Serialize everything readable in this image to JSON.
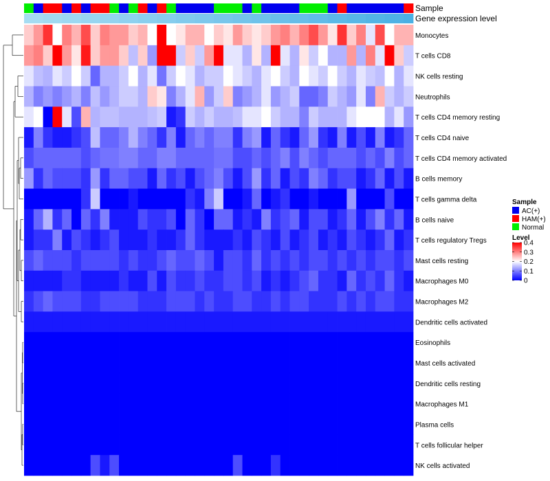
{
  "chart_data": {
    "type": "heatmap",
    "annotations": {
      "sample_title": "Sample",
      "expression_title": "Gene expression level"
    },
    "rows": [
      "Monocytes",
      "T cells CD8",
      "NK cells resting",
      "Neutrophils",
      "T cells CD4 memory resting",
      "T cells CD4 naive",
      "T cells CD4 memory activated",
      "B cells memory",
      "T cells gamma delta",
      "B cells naive",
      "T cells regulatory  Tregs",
      "Mast cells resting",
      "Macrophages M0",
      "Macrophages M2",
      "Dendritic cells activated",
      "Eosinophils",
      "Mast cells activated",
      "Dendritic cells resting",
      "Macrophages M1",
      "Plasma cells",
      "T cells follicular helper",
      "NK cells activated"
    ],
    "sample_groups": [
      "N",
      "A",
      "H",
      "H",
      "A",
      "H",
      "A",
      "H",
      "H",
      "N",
      "A",
      "N",
      "H",
      "A",
      "H",
      "N",
      "A",
      "A",
      "A",
      "A",
      "N",
      "N",
      "N",
      "A",
      "N",
      "A",
      "A",
      "A",
      "A",
      "N",
      "N",
      "N",
      "A",
      "H",
      "A",
      "A",
      "A",
      "A",
      "A",
      "A",
      "H"
    ],
    "expression_levels": [
      0.16,
      0.16,
      0.17,
      0.17,
      0.18,
      0.18,
      0.19,
      0.19,
      0.2,
      0.2,
      0.21,
      0.21,
      0.22,
      0.22,
      0.23,
      0.23,
      0.24,
      0.24,
      0.25,
      0.25,
      0.26,
      0.26,
      0.27,
      0.27,
      0.28,
      0.28,
      0.29,
      0.29,
      0.3,
      0.3,
      0.31,
      0.31,
      0.32,
      0.32,
      0.33,
      0.33,
      0.34,
      0.34,
      0.35,
      0.35,
      0.36
    ],
    "values": [
      [
        0.24,
        0.28,
        0.36,
        0.2,
        0.3,
        0.26,
        0.34,
        0.24,
        0.3,
        0.28,
        0.28,
        0.24,
        0.26,
        0.2,
        0.4,
        0.2,
        0.22,
        0.26,
        0.26,
        0.2,
        0.24,
        0.22,
        0.28,
        0.24,
        0.22,
        0.24,
        0.28,
        0.3,
        0.26,
        0.3,
        0.34,
        0.28,
        0.22,
        0.36,
        0.24,
        0.3,
        0.18,
        0.34,
        0.2,
        0.26,
        0.26
      ],
      [
        0.28,
        0.3,
        0.24,
        0.4,
        0.28,
        0.22,
        0.38,
        0.24,
        0.28,
        0.28,
        0.24,
        0.15,
        0.24,
        0.12,
        0.4,
        0.4,
        0.16,
        0.24,
        0.16,
        0.28,
        0.4,
        0.18,
        0.18,
        0.14,
        0.22,
        0.14,
        0.4,
        0.18,
        0.14,
        0.22,
        0.16,
        0.2,
        0.14,
        0.14,
        0.28,
        0.14,
        0.3,
        0.18,
        0.4,
        0.24,
        0.16
      ],
      [
        0.18,
        0.15,
        0.14,
        0.18,
        0.16,
        0.2,
        0.16,
        0.08,
        0.14,
        0.14,
        0.16,
        0.2,
        0.14,
        0.18,
        0.09,
        0.16,
        0.2,
        0.18,
        0.14,
        0.16,
        0.16,
        0.2,
        0.18,
        0.16,
        0.14,
        0.18,
        0.2,
        0.16,
        0.14,
        0.2,
        0.18,
        0.16,
        0.2,
        0.16,
        0.14,
        0.18,
        0.16,
        0.15,
        0.2,
        0.14,
        0.18
      ],
      [
        0.14,
        0.1,
        0.12,
        0.1,
        0.12,
        0.14,
        0.1,
        0.15,
        0.12,
        0.14,
        0.16,
        0.16,
        0.14,
        0.24,
        0.22,
        0.1,
        0.14,
        0.18,
        0.26,
        0.12,
        0.16,
        0.24,
        0.1,
        0.12,
        0.14,
        0.18,
        0.12,
        0.14,
        0.16,
        0.08,
        0.08,
        0.1,
        0.16,
        0.14,
        0.12,
        0.18,
        0.1,
        0.26,
        0.16,
        0.14,
        0.16
      ],
      [
        0.18,
        0.2,
        0,
        0.4,
        0.18,
        0.06,
        0.26,
        0.14,
        0.15,
        0.15,
        0.14,
        0.14,
        0.14,
        0.15,
        0.16,
        0.02,
        0.04,
        0.16,
        0.14,
        0.16,
        0.14,
        0.14,
        0.15,
        0.18,
        0.18,
        0.2,
        0.16,
        0.14,
        0.14,
        0.1,
        0.16,
        0.14,
        0.14,
        0.14,
        0.18,
        0.2,
        0.2,
        0.2,
        0.14,
        0.18,
        0.12
      ],
      [
        0.02,
        0.1,
        0.04,
        0.02,
        0.02,
        0.04,
        0.06,
        0.15,
        0.08,
        0.08,
        0.1,
        0.14,
        0.1,
        0.08,
        0.04,
        0.1,
        0.02,
        0.08,
        0.1,
        0.08,
        0.1,
        0.1,
        0.04,
        0.1,
        0.12,
        0.02,
        0.08,
        0.04,
        0.02,
        0.08,
        0.12,
        0.04,
        0.02,
        0.1,
        0.02,
        0.06,
        0.02,
        0.1,
        0.02,
        0.04,
        0.08
      ],
      [
        0.06,
        0.08,
        0.08,
        0.08,
        0.08,
        0.08,
        0.06,
        0.08,
        0.09,
        0.09,
        0.1,
        0.1,
        0.08,
        0.08,
        0.1,
        0.1,
        0.08,
        0.08,
        0.08,
        0.08,
        0.09,
        0.09,
        0.06,
        0.06,
        0.08,
        0.06,
        0.08,
        0.1,
        0.06,
        0.1,
        0.08,
        0.06,
        0.08,
        0.08,
        0.08,
        0.06,
        0.08,
        0.06,
        0.1,
        0.06,
        0.08
      ],
      [
        0.12,
        0.04,
        0.08,
        0.06,
        0.06,
        0.06,
        0.04,
        0.12,
        0.04,
        0.08,
        0.08,
        0.06,
        0.06,
        0.02,
        0.08,
        0.04,
        0.06,
        0.02,
        0.06,
        0.08,
        0.1,
        0.06,
        0.02,
        0.06,
        0.12,
        0.04,
        0.08,
        0.02,
        0.06,
        0.04,
        0.1,
        0.08,
        0.04,
        0.06,
        0.06,
        0.02,
        0.04,
        0.08,
        0.02,
        0.06,
        0.02
      ],
      [
        0,
        0,
        0,
        0,
        0,
        0,
        0.04,
        0.16,
        0,
        0,
        0,
        0.02,
        0,
        0,
        0,
        0,
        0,
        0.04,
        0.02,
        0.1,
        0.16,
        0,
        0,
        0.02,
        0.08,
        0,
        0.02,
        0.04,
        0,
        0,
        0.02,
        0,
        0,
        0,
        0.12,
        0,
        0,
        0,
        0.06,
        0,
        0
      ],
      [
        0.02,
        0.08,
        0.14,
        0.04,
        0.08,
        0,
        0.08,
        0.04,
        0.1,
        0.02,
        0.02,
        0.02,
        0.06,
        0.04,
        0.04,
        0.06,
        0,
        0.08,
        0.04,
        0,
        0.08,
        0.08,
        0.02,
        0.04,
        0.02,
        0.1,
        0.04,
        0.06,
        0.08,
        0.02,
        0.06,
        0.06,
        0.02,
        0.04,
        0.08,
        0.02,
        0.06,
        0.1,
        0.04,
        0.08,
        0.02
      ],
      [
        0.02,
        0.04,
        0.04,
        0.1,
        0.02,
        0.06,
        0.04,
        0.02,
        0.04,
        0.06,
        0.02,
        0.02,
        0.02,
        0.04,
        0.02,
        0.02,
        0.04,
        0.08,
        0.04,
        0.02,
        0.02,
        0.02,
        0.04,
        0.02,
        0.06,
        0.04,
        0.02,
        0.06,
        0.02,
        0.04,
        0.06,
        0.02,
        0.04,
        0.02,
        0.06,
        0.04,
        0.02,
        0.04,
        0.08,
        0.02,
        0.04
      ],
      [
        0.06,
        0.08,
        0.06,
        0.06,
        0.06,
        0.04,
        0.06,
        0.06,
        0.06,
        0.06,
        0.04,
        0.06,
        0.04,
        0.04,
        0.06,
        0.08,
        0.06,
        0.06,
        0.08,
        0.06,
        0.02,
        0.06,
        0.06,
        0.04,
        0.08,
        0.04,
        0.06,
        0.04,
        0.06,
        0.04,
        0.06,
        0.06,
        0.04,
        0.06,
        0.04,
        0.06,
        0.04,
        0.06,
        0.06,
        0.04,
        0.06
      ],
      [
        0.02,
        0.02,
        0.02,
        0.02,
        0.04,
        0.04,
        0.02,
        0.02,
        0.02,
        0.02,
        0.04,
        0.02,
        0.02,
        0.06,
        0.02,
        0.06,
        0.04,
        0.04,
        0.06,
        0.04,
        0.04,
        0.06,
        0.06,
        0.04,
        0.06,
        0.02,
        0.04,
        0.02,
        0.04,
        0.06,
        0.08,
        0.04,
        0.04,
        0.02,
        0.08,
        0.04,
        0.06,
        0.04,
        0.08,
        0.04,
        0.02
      ],
      [
        0.04,
        0.06,
        0.08,
        0.06,
        0.06,
        0.06,
        0.04,
        0.04,
        0.06,
        0.06,
        0.06,
        0.06,
        0.04,
        0.04,
        0.04,
        0.06,
        0.06,
        0.06,
        0.04,
        0.06,
        0.04,
        0.04,
        0.06,
        0.06,
        0.04,
        0.04,
        0.06,
        0.04,
        0.06,
        0.06,
        0.04,
        0.04,
        0.04,
        0.06,
        0.04,
        0.06,
        0.04,
        0.06,
        0.06,
        0.04,
        0.04
      ],
      [
        0.02,
        0.02,
        0.02,
        0.02,
        0.02,
        0.02,
        0.02,
        0.02,
        0.02,
        0.02,
        0.02,
        0.02,
        0.02,
        0.02,
        0.02,
        0.02,
        0.02,
        0.02,
        0.02,
        0.02,
        0.02,
        0.02,
        0.02,
        0.02,
        0.02,
        0.02,
        0.02,
        0.02,
        0.02,
        0.02,
        0.02,
        0.02,
        0.02,
        0.02,
        0.02,
        0.02,
        0.02,
        0.02,
        0.02,
        0.02,
        0.02
      ],
      [
        0,
        0,
        0,
        0,
        0,
        0,
        0,
        0,
        0,
        0,
        0,
        0,
        0,
        0,
        0,
        0,
        0,
        0,
        0,
        0,
        0,
        0,
        0,
        0,
        0,
        0,
        0,
        0,
        0,
        0,
        0,
        0,
        0,
        0,
        0,
        0,
        0,
        0,
        0,
        0,
        0
      ],
      [
        0,
        0,
        0,
        0,
        0,
        0,
        0,
        0,
        0,
        0,
        0,
        0,
        0,
        0,
        0,
        0,
        0,
        0,
        0,
        0,
        0,
        0,
        0,
        0,
        0,
        0,
        0,
        0,
        0,
        0,
        0,
        0,
        0,
        0,
        0,
        0,
        0,
        0,
        0,
        0,
        0
      ],
      [
        0,
        0,
        0,
        0,
        0,
        0,
        0,
        0,
        0,
        0,
        0,
        0,
        0,
        0,
        0,
        0,
        0,
        0,
        0,
        0,
        0,
        0,
        0,
        0,
        0,
        0,
        0,
        0,
        0,
        0,
        0,
        0,
        0,
        0,
        0,
        0,
        0,
        0,
        0,
        0,
        0
      ],
      [
        0,
        0,
        0,
        0,
        0,
        0,
        0,
        0,
        0,
        0,
        0,
        0,
        0,
        0,
        0,
        0,
        0,
        0,
        0,
        0,
        0,
        0,
        0,
        0,
        0,
        0,
        0,
        0,
        0,
        0,
        0,
        0,
        0,
        0,
        0,
        0,
        0,
        0,
        0,
        0,
        0
      ],
      [
        0,
        0,
        0,
        0,
        0,
        0,
        0,
        0,
        0,
        0,
        0,
        0,
        0,
        0,
        0,
        0,
        0,
        0,
        0,
        0,
        0,
        0,
        0,
        0,
        0,
        0,
        0,
        0,
        0,
        0,
        0,
        0,
        0,
        0,
        0,
        0,
        0,
        0,
        0,
        0,
        0
      ],
      [
        0,
        0,
        0,
        0,
        0,
        0,
        0,
        0,
        0,
        0,
        0,
        0,
        0,
        0,
        0,
        0,
        0,
        0,
        0,
        0,
        0,
        0,
        0,
        0,
        0,
        0,
        0,
        0,
        0,
        0,
        0,
        0,
        0,
        0,
        0,
        0,
        0,
        0,
        0,
        0,
        0
      ],
      [
        0,
        0,
        0,
        0,
        0,
        0,
        0,
        0.06,
        0.02,
        0.06,
        0,
        0,
        0,
        0,
        0,
        0,
        0,
        0,
        0,
        0,
        0,
        0,
        0.06,
        0,
        0,
        0,
        0.04,
        0,
        0,
        0,
        0,
        0,
        0,
        0,
        0,
        0,
        0,
        0,
        0,
        0,
        0
      ]
    ],
    "scale": {
      "min": 0,
      "max": 0.4,
      "ticks": [
        "0.4",
        "0.3",
        "0.2",
        "0.1",
        "0"
      ],
      "tick_values": [
        0.4,
        0.3,
        0.2,
        0.1,
        0
      ]
    },
    "legend": {
      "sample_title": "Sample",
      "groups": [
        {
          "code": "A",
          "label": "AC(+)",
          "color": "#0000ee"
        },
        {
          "code": "H",
          "label": "HAM(+)",
          "color": "#ff0000"
        },
        {
          "code": "N",
          "label": "Normal",
          "color": "#00ee00"
        }
      ],
      "level_title": "Level",
      "placement": "right"
    },
    "colors": {
      "low": "#0000ff",
      "mid": "#ffffff",
      "high": "#ff0000",
      "expr_low": "#a6dcf2",
      "expr_high": "#4ab0e4"
    }
  }
}
